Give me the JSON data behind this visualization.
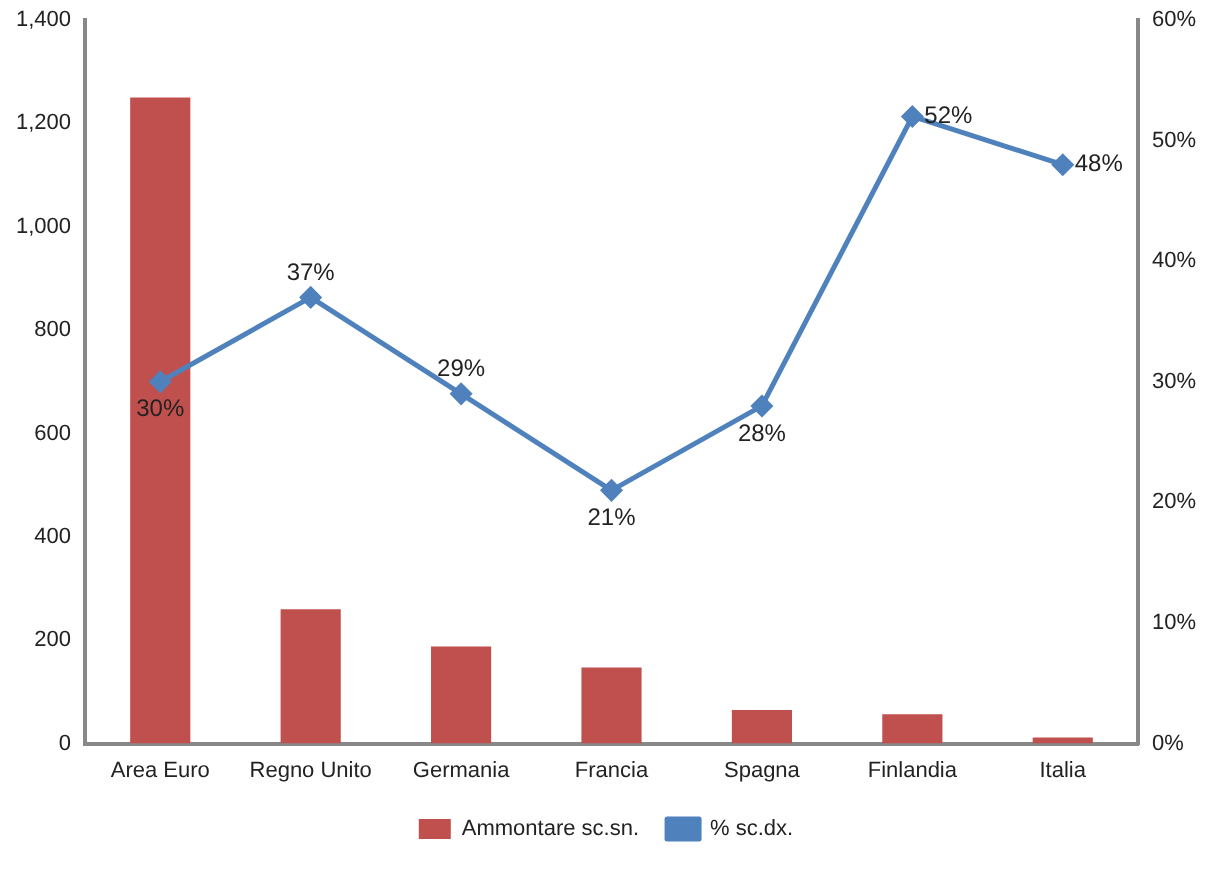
{
  "chart_data": {
    "type": "bar",
    "categories": [
      "Area Euro",
      "Regno Unito",
      "Germania",
      "Francia",
      "Spagna",
      "Finlandia",
      "Italia"
    ],
    "series": [
      {
        "name": "Ammontare sc.sn.",
        "color": "#c0504d",
        "values": [
          1250,
          260,
          188,
          147,
          65,
          57,
          12
        ]
      },
      {
        "name": "% sc.dx.",
        "type": "line",
        "axis": "y2",
        "color": "#4f81bd",
        "values": [
          30,
          37,
          29,
          21,
          28,
          52,
          48
        ],
        "value_labels": [
          "30%",
          "37%",
          "29%",
          "21%",
          "28%",
          "52%",
          "48%"
        ],
        "marker": "diamond"
      }
    ],
    "ylim": [
      0,
      1400
    ],
    "yticks": [
      0,
      200,
      400,
      600,
      800,
      {
        "value": 1000,
        "label": "1,000"
      },
      {
        "value": 1200,
        "label": "1,200"
      },
      {
        "value": 1400,
        "label": "1,400"
      }
    ],
    "y2lim": [
      0,
      60
    ],
    "y2ticks": [
      {
        "value": 0,
        "label": "0%"
      },
      {
        "value": 10,
        "label": "10%"
      },
      {
        "value": 20,
        "label": "20%"
      },
      {
        "value": 30,
        "label": "30%"
      },
      {
        "value": 40,
        "label": "40%"
      },
      {
        "value": 50,
        "label": "50%"
      },
      {
        "value": 60,
        "label": "60%"
      }
    ],
    "grid": false,
    "legend": "bottom"
  }
}
